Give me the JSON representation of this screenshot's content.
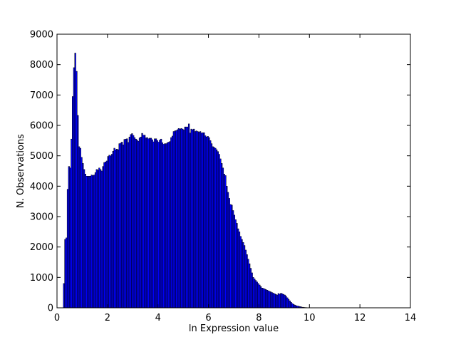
{
  "chart_data": {
    "type": "bar",
    "title": "",
    "xlabel": "ln Expression value",
    "ylabel": "N. Observations",
    "xlim": [
      0,
      14
    ],
    "ylim": [
      0,
      9000
    ],
    "xticks": [
      "0",
      "2",
      "4",
      "6",
      "8",
      "10",
      "12",
      "14"
    ],
    "yticks": [
      "0",
      "1000",
      "2000",
      "3000",
      "4000",
      "5000",
      "6000",
      "7000",
      "8000",
      "9000"
    ],
    "grid": false,
    "legend": "none",
    "bar_color": "#0000ff",
    "edge_color": "#000000",
    "bin_width": 0.05,
    "bin_start": 0.25,
    "values": [
      800,
      2250,
      2300,
      3900,
      4650,
      4600,
      5550,
      6950,
      7900,
      8380,
      7780,
      6330,
      5300,
      5250,
      4950,
      4750,
      4550,
      4400,
      4330,
      4330,
      4330,
      4330,
      4370,
      4350,
      4370,
      4450,
      4550,
      4530,
      4600,
      4550,
      4500,
      4650,
      4780,
      4800,
      4830,
      4980,
      5020,
      5000,
      5050,
      5150,
      5250,
      5200,
      5220,
      5200,
      5400,
      5420,
      5450,
      5360,
      5540,
      5550,
      5560,
      5440,
      5620,
      5700,
      5730,
      5670,
      5600,
      5550,
      5520,
      5480,
      5590,
      5620,
      5740,
      5680,
      5680,
      5590,
      5600,
      5560,
      5580,
      5580,
      5530,
      5460,
      5560,
      5560,
      5500,
      5450,
      5520,
      5550,
      5430,
      5380,
      5400,
      5400,
      5430,
      5450,
      5470,
      5600,
      5650,
      5800,
      5820,
      5830,
      5860,
      5900,
      5880,
      5900,
      5880,
      5850,
      5950,
      5950,
      5950,
      6050,
      5750,
      5880,
      5860,
      5880,
      5800,
      5820,
      5800,
      5780,
      5800,
      5750,
      5760,
      5760,
      5660,
      5620,
      5640,
      5600,
      5500,
      5400,
      5300,
      5280,
      5250,
      5200,
      5140,
      5050,
      4900,
      4750,
      4600,
      4400,
      4350,
      4000,
      3800,
      3600,
      3400,
      3380,
      3200,
      3050,
      2900,
      2780,
      2600,
      2500,
      2350,
      2250,
      2150,
      2050,
      1900,
      1750,
      1600,
      1450,
      1300,
      1150,
      1000,
      950,
      900,
      850,
      800,
      750,
      700,
      650,
      640,
      620,
      600,
      580,
      560,
      540,
      520,
      500,
      480,
      460,
      440,
      420,
      470,
      450,
      480,
      460,
      440,
      420,
      380,
      330,
      280,
      230,
      180,
      140,
      110,
      90,
      70,
      60,
      50,
      40,
      30,
      20,
      15,
      10,
      8,
      5,
      3
    ]
  }
}
